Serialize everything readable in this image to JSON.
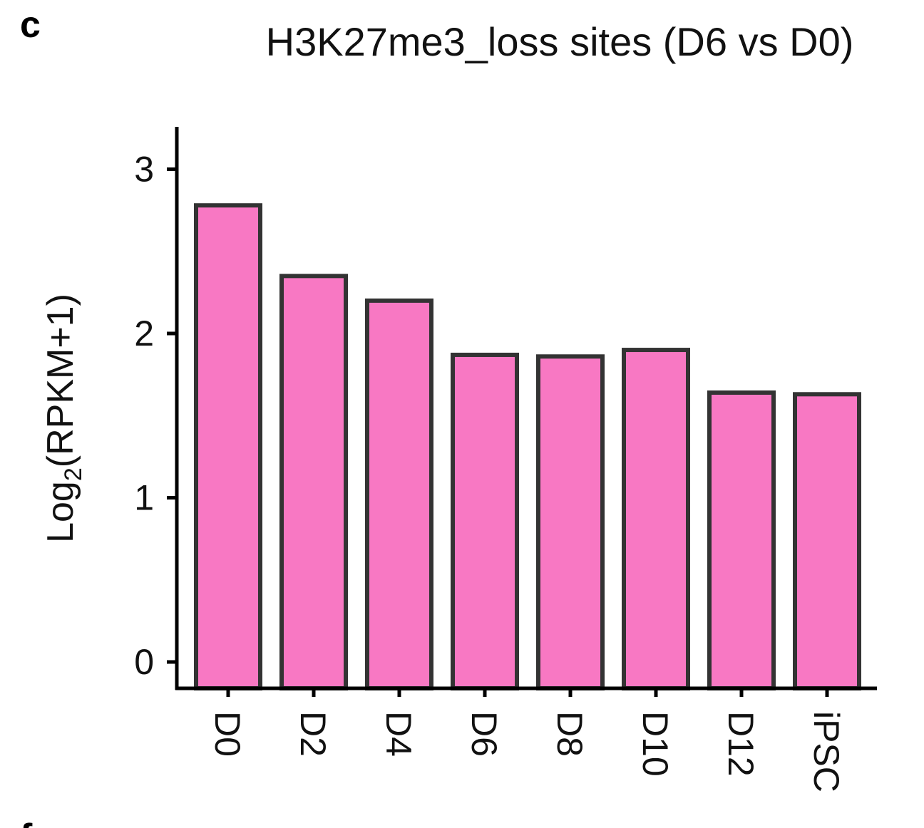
{
  "panel_label": "c",
  "panel_label_next": "f",
  "chart_data": {
    "type": "bar",
    "title": "H3K27me3_loss sites (D6 vs D0)",
    "xlabel": "",
    "ylabel_main": "Log",
    "ylabel_sub": "2",
    "ylabel_rest": "(RPKM+1)",
    "categories": [
      "D0",
      "D2",
      "D4",
      "D6",
      "D8",
      "D10",
      "D12",
      "iPSC"
    ],
    "values": [
      2.78,
      2.35,
      2.2,
      1.87,
      1.86,
      1.9,
      1.64,
      1.63
    ],
    "ylim": [
      0,
      3.25
    ],
    "yticks": [
      0,
      1,
      2,
      3
    ],
    "ytick_labels": [
      "0",
      "1",
      "2",
      "3"
    ],
    "grid": false,
    "legend": "none",
    "colors": {
      "bar_fill": "#f878c3",
      "bar_stroke": "#333333",
      "axis": "#000000"
    }
  }
}
